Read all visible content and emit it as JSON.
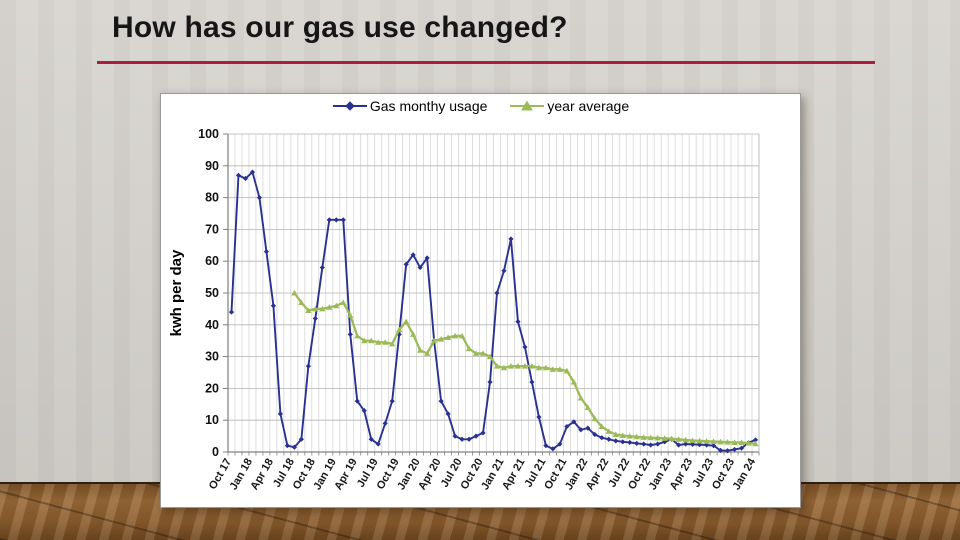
{
  "slide": {
    "title": "How has our gas use changed?",
    "accent_color": "#A91E3C"
  },
  "chart_data": {
    "type": "line",
    "title": "",
    "xlabel": "",
    "ylabel": "kwh per day",
    "ylim": [
      0,
      100
    ],
    "ytick_step": 10,
    "grid": "both",
    "legend_position": "top",
    "months_total": 76,
    "x_tick_every": 3,
    "x_tick_labels": [
      "Oct 17",
      "Jan 18",
      "Apr 18",
      "Jul 18",
      "Oct 18",
      "Jan 19",
      "Apr 19",
      "Jul 19",
      "Oct 19",
      "Jan 20",
      "Apr 20",
      "Jul 20",
      "Oct 20",
      "Jan 21",
      "Apr 21",
      "Jul 21",
      "Oct 21",
      "Jan 22",
      "Apr 22",
      "Jul 22",
      "Oct 22",
      "Jan 23",
      "Apr 23",
      "Jul 23",
      "Oct 23",
      "Jan 24"
    ],
    "series": [
      {
        "name": "Gas monthy usage",
        "color": "#2A3190",
        "marker": "diamond",
        "start_index": 0,
        "values": [
          44,
          87,
          86,
          88,
          80,
          63,
          46,
          12,
          2,
          1.5,
          4,
          27,
          42,
          58,
          73,
          73,
          73,
          37,
          16,
          13,
          4,
          2.5,
          9,
          16,
          37,
          59,
          62,
          58,
          61,
          35,
          16,
          12,
          5,
          4,
          4,
          5,
          6,
          22,
          50,
          57,
          67,
          41,
          33,
          22,
          11,
          2,
          1,
          2.5,
          8,
          9.5,
          7,
          7.5,
          5.5,
          4.5,
          4,
          3.5,
          3.2,
          3,
          2.7,
          2.5,
          2.2,
          2.5,
          3.2,
          4,
          2.2,
          2.5,
          2.4,
          2.3,
          2.2,
          2,
          0.5,
          0.4,
          0.8,
          1.2,
          2.9,
          3.8
        ]
      },
      {
        "name": "year average",
        "color": "#9CBB58",
        "marker": "triangle",
        "start_index": 9,
        "values": [
          50,
          47,
          44.5,
          45,
          45,
          45.5,
          46,
          47,
          43,
          36.5,
          35,
          35,
          34.5,
          34.5,
          34,
          38.5,
          41,
          37,
          32,
          31,
          35,
          35.5,
          36,
          36.5,
          36.5,
          32.5,
          31,
          31,
          30,
          27,
          26.5,
          27,
          27,
          27,
          27,
          26.5,
          26.5,
          26,
          26,
          25.5,
          22,
          17,
          14,
          10.5,
          8,
          6.5,
          5.5,
          5.2,
          5,
          4.8,
          4.6,
          4.5,
          4.4,
          4.3,
          4.2,
          4,
          3.8,
          3.6,
          3.5,
          3.4,
          3.3,
          3.2,
          3.1,
          3,
          3,
          2.8,
          2.6
        ]
      }
    ]
  }
}
